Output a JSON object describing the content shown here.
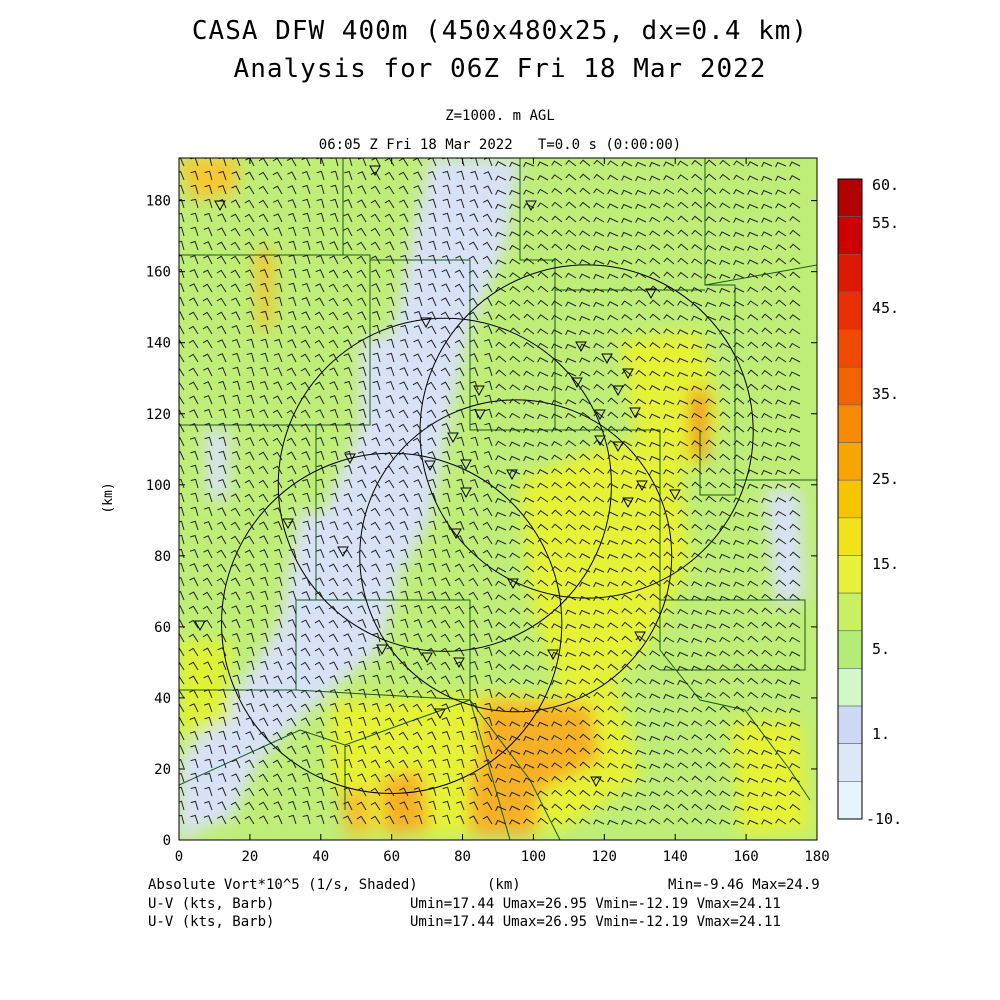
{
  "titles": {
    "line1": "CASA DFW 400m (450x480x25, dx=0.4 km)",
    "line2": "Analysis for 06Z Fri 18 Mar 2022",
    "level": "Z=1000. m AGL",
    "time": "06:05 Z Fri 18 Mar 2022   T=0.0 s (0:00:00)"
  },
  "footer": {
    "var_label": "Absolute Vort*10^5 (1/s, Shaded)",
    "x_unit": "(km)",
    "minmax": "Min=-9.46 Max=24.9",
    "wind1_label": "U-V (kts, Barb)",
    "wind1_stats": "Umin=17.44 Umax=26.95 Vmin=-12.19 Vmax=24.11",
    "wind2_label": "U-V (kts, Barb)",
    "wind2_stats": "Umin=17.44 Umax=26.95 Vmin=-12.19 Vmax=24.11"
  },
  "chart_data": {
    "type": "heatmap",
    "variable": "Absolute Vort*10^5 (1/s, Shaded)",
    "xlabel": "(km)",
    "ylabel": "(km)",
    "xlim": [
      0,
      180
    ],
    "ylim": [
      0,
      190
    ],
    "xticks": [
      0,
      20,
      40,
      60,
      80,
      100,
      120,
      140,
      160,
      180
    ],
    "yticks": [
      0,
      20,
      40,
      60,
      80,
      100,
      120,
      140,
      160,
      180
    ],
    "colorbar": {
      "labels": [
        "60.",
        "55.",
        "45.",
        "35.",
        "25.",
        "15.",
        "5.",
        "1.",
        "-10."
      ],
      "colors": [
        "#b00000",
        "#cc0000",
        "#dd1a00",
        "#e83000",
        "#f04a00",
        "#f26400",
        "#f78a00",
        "#f7a500",
        "#f7c400",
        "#f2e21a",
        "#e8f23a",
        "#c8f060",
        "#b4ec78",
        "#d2f8c8",
        "#cdd8f4",
        "#dce8f8",
        "#e6f4fb"
      ]
    },
    "field_min": -9.46,
    "field_max": 24.9,
    "radar_rings": [
      {
        "cx_km": 115,
        "cy_km": 115,
        "r_km": 47
      },
      {
        "cx_km": 75,
        "cy_km": 100,
        "r_km": 47
      },
      {
        "cx_km": 95,
        "cy_km": 80,
        "r_km": 44
      },
      {
        "cx_km": 60,
        "cy_km": 61,
        "r_km": 48
      }
    ],
    "wind_barbs": {
      "units": "kts",
      "u_min": 17.44,
      "u_max": 26.95,
      "v_min": -12.19,
      "v_max": 24.11
    }
  }
}
